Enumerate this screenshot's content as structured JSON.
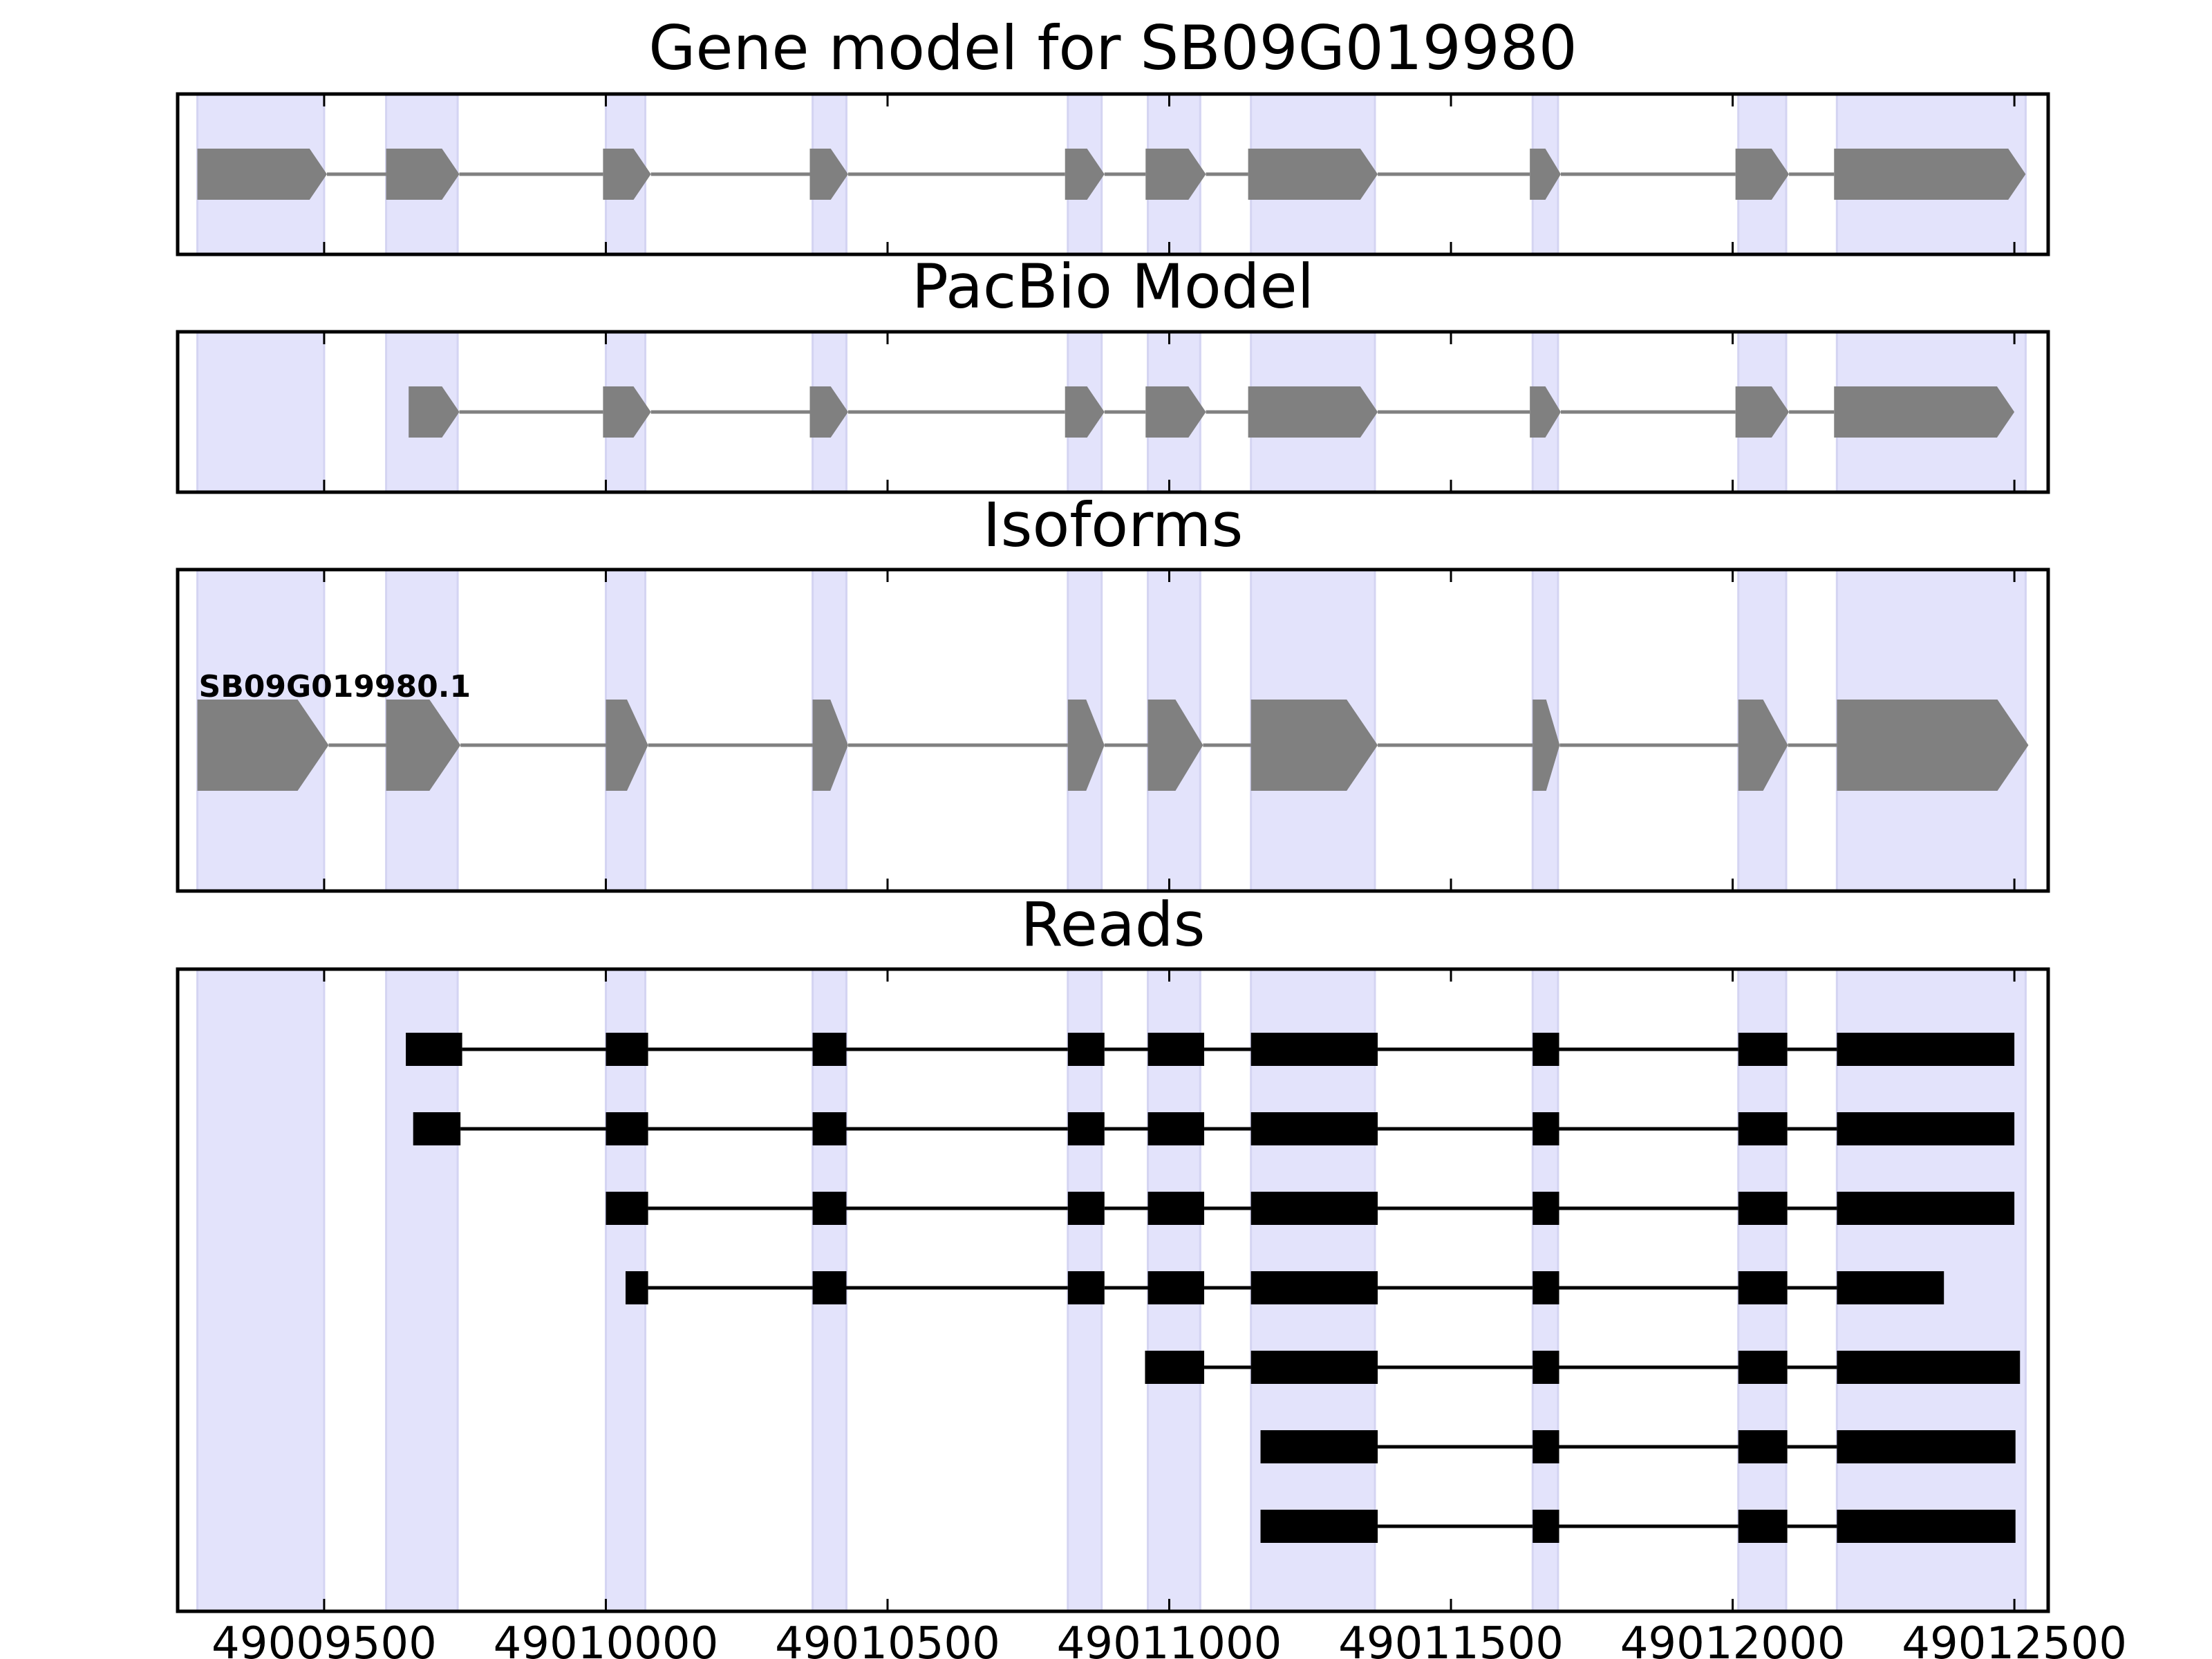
{
  "chart_data": {
    "type": "gene_structure",
    "xlim": [
      49009240,
      49012560
    ],
    "x_ticks": [
      {
        "value": 49009500,
        "label": "49009500"
      },
      {
        "value": 49010000,
        "label": "49010000"
      },
      {
        "value": 49010500,
        "label": "49010500"
      },
      {
        "value": 49011000,
        "label": "49011000"
      },
      {
        "value": 49011500,
        "label": "49011500"
      },
      {
        "value": 49012000,
        "label": "49012000"
      },
      {
        "value": 49012500,
        "label": "49012500"
      }
    ],
    "highlight_color": "#e3e3fb",
    "shaded_regions": [
      [
        49009275,
        49009500
      ],
      [
        49009610,
        49009737
      ],
      [
        49010000,
        49010070
      ],
      [
        49010367,
        49010427
      ],
      [
        49010820,
        49010880
      ],
      [
        49010962,
        49011055
      ],
      [
        49011145,
        49011365
      ],
      [
        49011645,
        49011690
      ],
      [
        49012010,
        49012095
      ],
      [
        49012185,
        49012520
      ]
    ],
    "panels": [
      {
        "title": "Gene model for SB09G019980",
        "kind": "model",
        "color": "#808080",
        "strand": "+",
        "exons": [
          [
            49009275,
            49009505
          ],
          [
            49009610,
            49009740
          ],
          [
            49009995,
            49010080
          ],
          [
            49010362,
            49010430
          ],
          [
            49010815,
            49010885
          ],
          [
            49010958,
            49011065
          ],
          [
            49011140,
            49011370
          ],
          [
            49011640,
            49011695
          ],
          [
            49012005,
            49012100
          ],
          [
            49012180,
            49012520
          ]
        ]
      },
      {
        "title": "PacBio Model",
        "kind": "model",
        "color": "#808080",
        "strand": "+",
        "exons": [
          [
            49009650,
            49009740
          ],
          [
            49009995,
            49010080
          ],
          [
            49010362,
            49010430
          ],
          [
            49010815,
            49010885
          ],
          [
            49010958,
            49011065
          ],
          [
            49011140,
            49011370
          ],
          [
            49011640,
            49011695
          ],
          [
            49012005,
            49012100
          ],
          [
            49012180,
            49012500
          ]
        ]
      },
      {
        "title": "Isoforms",
        "kind": "isoforms",
        "color": "#808080",
        "strand": "+",
        "isoforms": [
          {
            "name": "SB09G019980.1",
            "exons": [
              [
                49009275,
                49009508
              ],
              [
                49009610,
                49009742
              ],
              [
                49010000,
                49010075
              ],
              [
                49010367,
                49010430
              ],
              [
                49010820,
                49010885
              ],
              [
                49010962,
                49011060
              ],
              [
                49011145,
                49011370
              ],
              [
                49011645,
                49011693
              ],
              [
                49012010,
                49012098
              ],
              [
                49012185,
                49012525
              ]
            ]
          }
        ]
      },
      {
        "title": "Reads",
        "kind": "reads",
        "color": "#000000",
        "reads": [
          [
            [
              49009645,
              49009745
            ],
            [
              49010000,
              49010075
            ],
            [
              49010367,
              49010427
            ],
            [
              49010820,
              49010885
            ],
            [
              49010962,
              49011062
            ],
            [
              49011145,
              49011370
            ],
            [
              49011645,
              49011692
            ],
            [
              49012010,
              49012097
            ],
            [
              49012185,
              49012500
            ]
          ],
          [
            [
              49009658,
              49009742
            ],
            [
              49010000,
              49010075
            ],
            [
              49010367,
              49010427
            ],
            [
              49010820,
              49010885
            ],
            [
              49010962,
              49011062
            ],
            [
              49011145,
              49011370
            ],
            [
              49011645,
              49011692
            ],
            [
              49012010,
              49012097
            ],
            [
              49012185,
              49012500
            ]
          ],
          [
            [
              49010000,
              49010075
            ],
            [
              49010367,
              49010427
            ],
            [
              49010820,
              49010885
            ],
            [
              49010962,
              49011062
            ],
            [
              49011145,
              49011370
            ],
            [
              49011645,
              49011692
            ],
            [
              49012010,
              49012097
            ],
            [
              49012185,
              49012500
            ]
          ],
          [
            [
              49010035,
              49010075
            ],
            [
              49010367,
              49010427
            ],
            [
              49010820,
              49010885
            ],
            [
              49010962,
              49011062
            ],
            [
              49011145,
              49011370
            ],
            [
              49011645,
              49011692
            ],
            [
              49012010,
              49012097
            ],
            [
              49012185,
              49012375
            ]
          ],
          [
            [
              49010957,
              49011062
            ],
            [
              49011145,
              49011370
            ],
            [
              49011645,
              49011692
            ],
            [
              49012010,
              49012097
            ],
            [
              49012185,
              49012510
            ]
          ],
          [
            [
              49011162,
              49011370
            ],
            [
              49011645,
              49011692
            ],
            [
              49012010,
              49012097
            ],
            [
              49012185,
              49012502
            ]
          ],
          [
            [
              49011162,
              49011370
            ],
            [
              49011645,
              49011692
            ],
            [
              49012010,
              49012097
            ],
            [
              49012185,
              49012502
            ]
          ]
        ]
      }
    ]
  }
}
